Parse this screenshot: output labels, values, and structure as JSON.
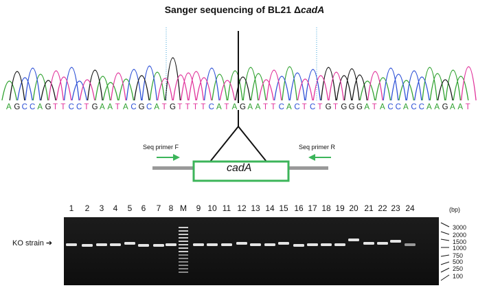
{
  "title": {
    "prefix": "Sanger sequencing of BL21 Δ",
    "gene": "cadA"
  },
  "sequence": "AGCCAGTTCCTGAATACGCATGTTTTCATAGAATTCACTCTGTGGGATACCACCAAGAAT",
  "base_colors": {
    "A": "#2ca02c",
    "C": "#2b4fd6",
    "G": "#111111",
    "T": "#e0309a"
  },
  "construct": {
    "gene_label": "cadA",
    "primer_f_label": "Seq primer F",
    "primer_r_label": "Seq primer R",
    "box_color": "#3cb55a",
    "arrow_color": "#3cb55a",
    "flank_color": "#999999"
  },
  "gel": {
    "lane_labels": [
      "1",
      "2",
      "3",
      "4",
      "5",
      "6",
      "7",
      "8",
      "M",
      "9",
      "10",
      "11",
      "12",
      "13",
      "14",
      "15",
      "16",
      "17",
      "18",
      "19",
      "20",
      "21",
      "22",
      "23",
      "24"
    ],
    "row_label": "KO strain",
    "bp_unit": "(bp)",
    "ladder_sizes": [
      "3000",
      "2000",
      "1500",
      "1000",
      "750",
      "500",
      "250",
      "100"
    ]
  }
}
